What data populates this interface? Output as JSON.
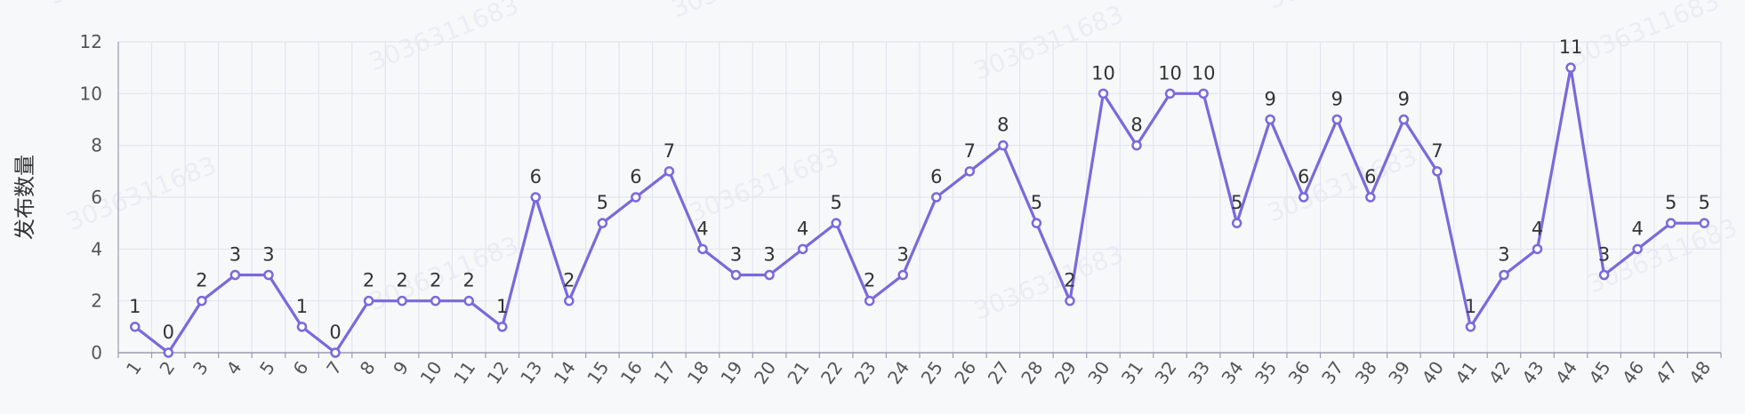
{
  "chart_data": {
    "type": "line",
    "title": "",
    "xlabel": "",
    "ylabel": "发布数量",
    "categories": [
      "1",
      "2",
      "3",
      "4",
      "5",
      "6",
      "7",
      "8",
      "9",
      "10",
      "11",
      "12",
      "13",
      "14",
      "15",
      "16",
      "17",
      "18",
      "19",
      "20",
      "21",
      "22",
      "23",
      "24",
      "25",
      "26",
      "27",
      "28",
      "29",
      "30",
      "31",
      "32",
      "33",
      "34",
      "35",
      "36",
      "37",
      "38",
      "39",
      "40",
      "41",
      "42",
      "43",
      "44",
      "45",
      "46",
      "47",
      "48"
    ],
    "series": [
      {
        "values": [
          1,
          0,
          2,
          3,
          3,
          1,
          0,
          2,
          2,
          2,
          2,
          1,
          6,
          2,
          5,
          6,
          7,
          4,
          3,
          3,
          4,
          5,
          2,
          3,
          6,
          7,
          8,
          5,
          2,
          10,
          8,
          10,
          10,
          5,
          9,
          6,
          9,
          6,
          9,
          7,
          1,
          3,
          4,
          11,
          3,
          4,
          5,
          5
        ]
      }
    ],
    "ylim": [
      0,
      12
    ],
    "yticks": [
      0,
      2,
      4,
      6,
      8,
      10,
      12
    ],
    "grid": true,
    "data_labels": true,
    "line_color": "#7b68dd",
    "grid_color": "#e3e5ef",
    "axis_color": "#9a9cb0",
    "watermark": "3036311683"
  }
}
